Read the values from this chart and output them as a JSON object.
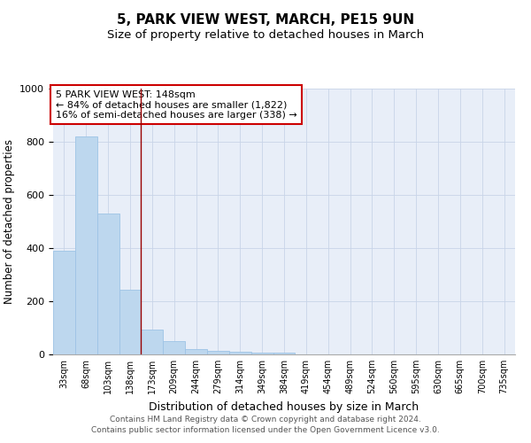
{
  "title": "5, PARK VIEW WEST, MARCH, PE15 9UN",
  "subtitle": "Size of property relative to detached houses in March",
  "xlabel": "Distribution of detached houses by size in March",
  "ylabel": "Number of detached properties",
  "bin_labels": [
    "33sqm",
    "68sqm",
    "103sqm",
    "138sqm",
    "173sqm",
    "209sqm",
    "244sqm",
    "279sqm",
    "314sqm",
    "349sqm",
    "384sqm",
    "419sqm",
    "454sqm",
    "489sqm",
    "524sqm",
    "560sqm",
    "595sqm",
    "630sqm",
    "665sqm",
    "700sqm",
    "735sqm"
  ],
  "bar_values": [
    390,
    820,
    530,
    243,
    95,
    50,
    20,
    15,
    10,
    8,
    8,
    0,
    0,
    0,
    0,
    0,
    0,
    0,
    0,
    0,
    0
  ],
  "bar_color": "#bdd7ee",
  "bar_edge_color": "#9dc3e6",
  "red_line_x": 3.5,
  "annotation_line1": "5 PARK VIEW WEST: 148sqm",
  "annotation_line2": "← 84% of detached houses are smaller (1,822)",
  "annotation_line3": "16% of semi-detached houses are larger (338) →",
  "annotation_box_color": "white",
  "annotation_box_edge_color": "#cc0000",
  "ylim": [
    0,
    1000
  ],
  "footnote1": "Contains HM Land Registry data © Crown copyright and database right 2024.",
  "footnote2": "Contains public sector information licensed under the Open Government Licence v3.0.",
  "title_fontsize": 11,
  "subtitle_fontsize": 9.5,
  "xlabel_fontsize": 9,
  "ylabel_fontsize": 8.5,
  "tick_fontsize": 7,
  "annotation_fontsize": 8,
  "footnote_fontsize": 6.5,
  "background_color": "#e8eef8"
}
